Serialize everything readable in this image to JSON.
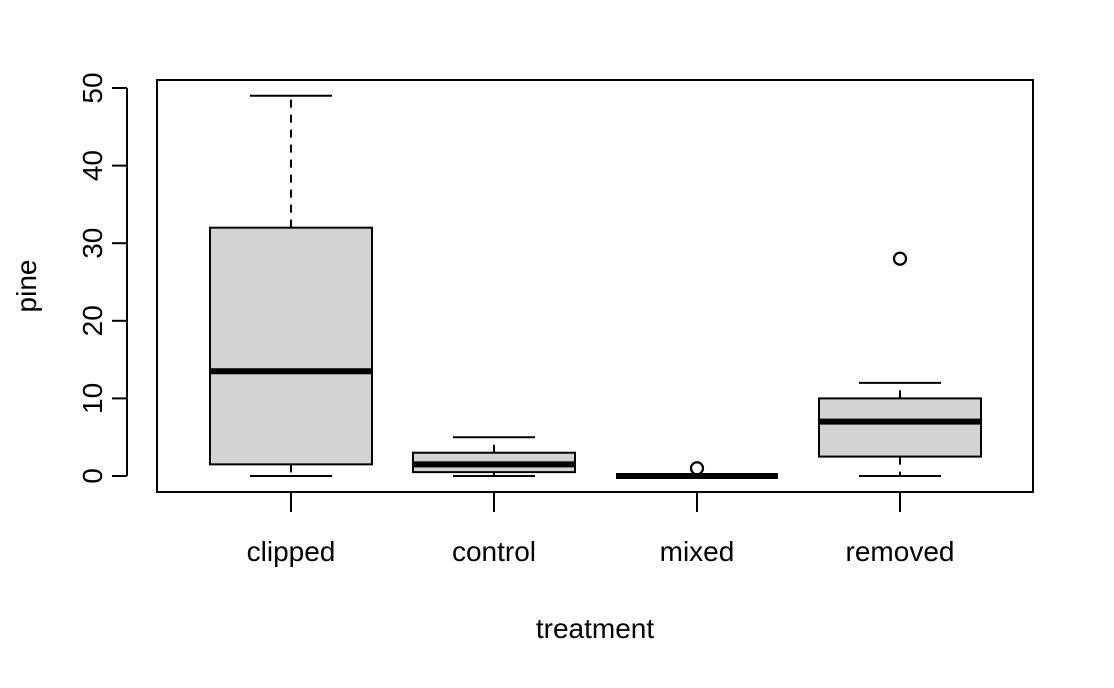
{
  "chart_data": {
    "type": "boxplot",
    "title": "",
    "xlabel": "treatment",
    "ylabel": "pine",
    "ylim": [
      -2,
      51
    ],
    "yticks": [
      0,
      10,
      20,
      30,
      40,
      50
    ],
    "grid": false,
    "categories": [
      "clipped",
      "control",
      "mixed",
      "removed"
    ],
    "boxes": [
      {
        "category": "clipped",
        "lower_whisker": 0,
        "q1": 1.5,
        "median": 13.5,
        "q3": 32,
        "upper_whisker": 49,
        "outliers": []
      },
      {
        "category": "control",
        "lower_whisker": 0,
        "q1": 0.5,
        "median": 1.5,
        "q3": 3,
        "upper_whisker": 5,
        "outliers": []
      },
      {
        "category": "mixed",
        "lower_whisker": 0,
        "q1": 0,
        "median": 0,
        "q3": 0,
        "upper_whisker": 0,
        "outliers": [
          1
        ]
      },
      {
        "category": "removed",
        "lower_whisker": 0,
        "q1": 2.5,
        "median": 7,
        "q3": 10,
        "upper_whisker": 12,
        "outliers": [
          28
        ]
      }
    ],
    "colors": {
      "box_fill": "#d3d3d3",
      "stroke": "#000000"
    }
  }
}
